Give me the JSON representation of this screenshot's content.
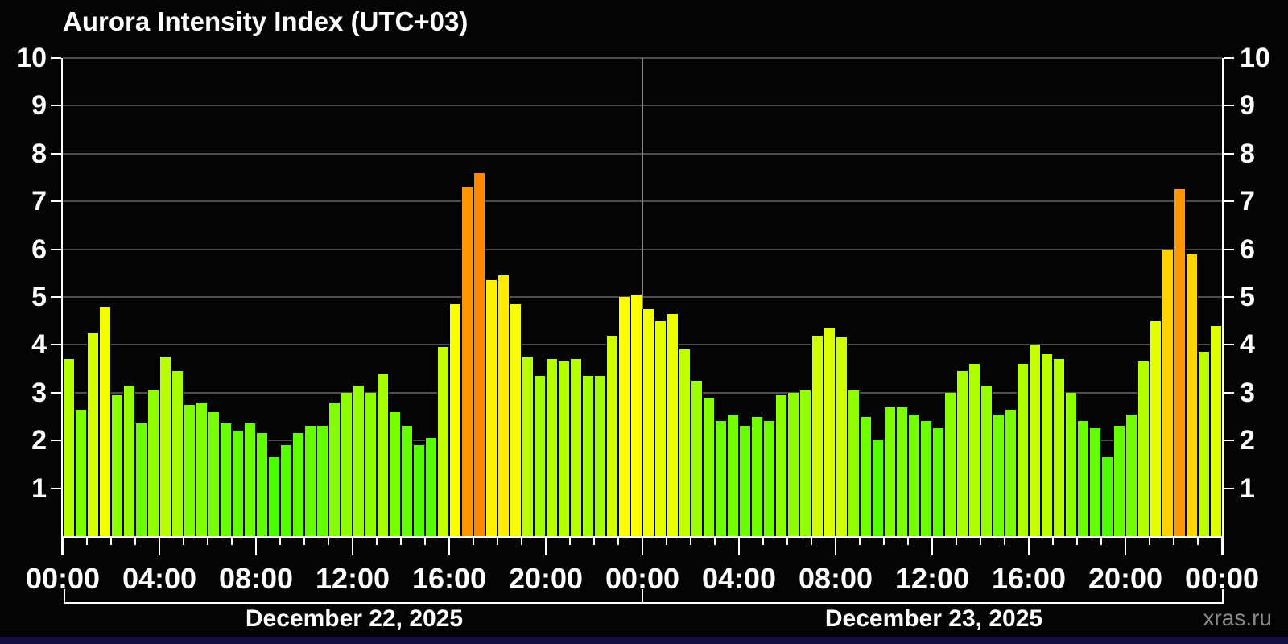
{
  "title": "Aurora Intensity Index (UTC+03)",
  "watermark": "xras.ru",
  "chart_data": {
    "type": "bar",
    "title": "Aurora Intensity Index (UTC+03)",
    "timezone": "UTC+03",
    "start": "December 22, 2025 00:00",
    "interval_minutes": 30,
    "ylim": [
      0,
      10
    ],
    "y_ticks": [
      1,
      2,
      3,
      4,
      5,
      6,
      7,
      8,
      9,
      10
    ],
    "x_tick_labels": [
      "00:00",
      "04:00",
      "08:00",
      "12:00",
      "16:00",
      "20:00",
      "00:00",
      "04:00",
      "08:00",
      "12:00",
      "16:00",
      "20:00",
      "00:00"
    ],
    "days": [
      {
        "label": "December 22, 2025"
      },
      {
        "label": "December 23, 2025"
      }
    ],
    "grid": true,
    "legend": false,
    "background": "#000000",
    "color_scale": {
      "description": "bar color encodes intensity: green (low) -> yellow-green -> yellow -> gold -> orange (high)",
      "low": "#44ee00",
      "mid": "#ffff00",
      "high": "#ff8800"
    },
    "values": [
      3.7,
      2.65,
      4.25,
      4.8,
      2.95,
      3.15,
      2.35,
      3.05,
      3.75,
      3.45,
      2.75,
      2.8,
      2.6,
      2.35,
      2.2,
      2.35,
      2.15,
      1.65,
      1.9,
      2.15,
      2.3,
      2.3,
      2.8,
      3.0,
      3.15,
      3.0,
      3.4,
      2.6,
      2.3,
      1.9,
      2.05,
      3.95,
      4.85,
      7.3,
      7.6,
      5.35,
      5.45,
      4.85,
      3.75,
      3.35,
      3.7,
      3.65,
      3.7,
      3.35,
      3.35,
      4.2,
      5.0,
      5.05,
      4.75,
      4.5,
      4.65,
      3.9,
      3.25,
      2.9,
      2.4,
      2.55,
      2.3,
      2.5,
      2.4,
      2.95,
      3.0,
      3.05,
      4.2,
      4.35,
      4.15,
      3.05,
      2.5,
      2.0,
      2.7,
      2.7,
      2.55,
      2.4,
      2.25,
      3.0,
      3.45,
      3.6,
      3.15,
      2.55,
      2.65,
      3.6,
      4.0,
      3.8,
      3.7,
      3.0,
      2.4,
      2.25,
      1.65,
      2.3,
      2.55,
      3.65,
      4.5,
      6.0,
      7.25,
      5.9,
      3.85,
      4.4
    ]
  }
}
